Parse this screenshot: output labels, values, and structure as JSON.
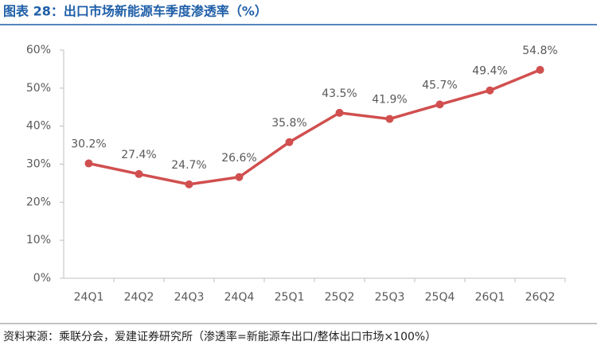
{
  "chart_data": {
    "type": "line",
    "title": "图表 28：出口市场新能源车季度渗透率（%）",
    "source": "资料来源：乘联分会，爱建证券研究所（渗透率=新能源车出口/整体出口市场×100%）",
    "categories": [
      "24Q1",
      "24Q2",
      "24Q3",
      "24Q4",
      "25Q1",
      "25Q2",
      "25Q3",
      "25Q4",
      "26Q1",
      "26Q2"
    ],
    "series": [
      {
        "name": "渗透率",
        "color": "#d14f4f",
        "values": [
          30.2,
          27.4,
          24.7,
          26.6,
          35.8,
          43.5,
          41.9,
          45.7,
          49.4,
          54.8
        ],
        "value_labels": [
          "30.2%",
          "27.4%",
          "24.7%",
          "26.6%",
          "35.8%",
          "43.5%",
          "41.9%",
          "45.7%",
          "49.4%",
          "54.8%"
        ]
      }
    ],
    "ylim": [
      0,
      60
    ],
    "yticks": [
      {
        "value": 0,
        "label": "0%"
      },
      {
        "value": 10,
        "label": "10%"
      },
      {
        "value": 20,
        "label": "20%"
      },
      {
        "value": 30,
        "label": "30%"
      },
      {
        "value": 40,
        "label": "40%"
      },
      {
        "value": 50,
        "label": "50%"
      },
      {
        "value": 60,
        "label": "60%"
      }
    ],
    "grid": false
  }
}
